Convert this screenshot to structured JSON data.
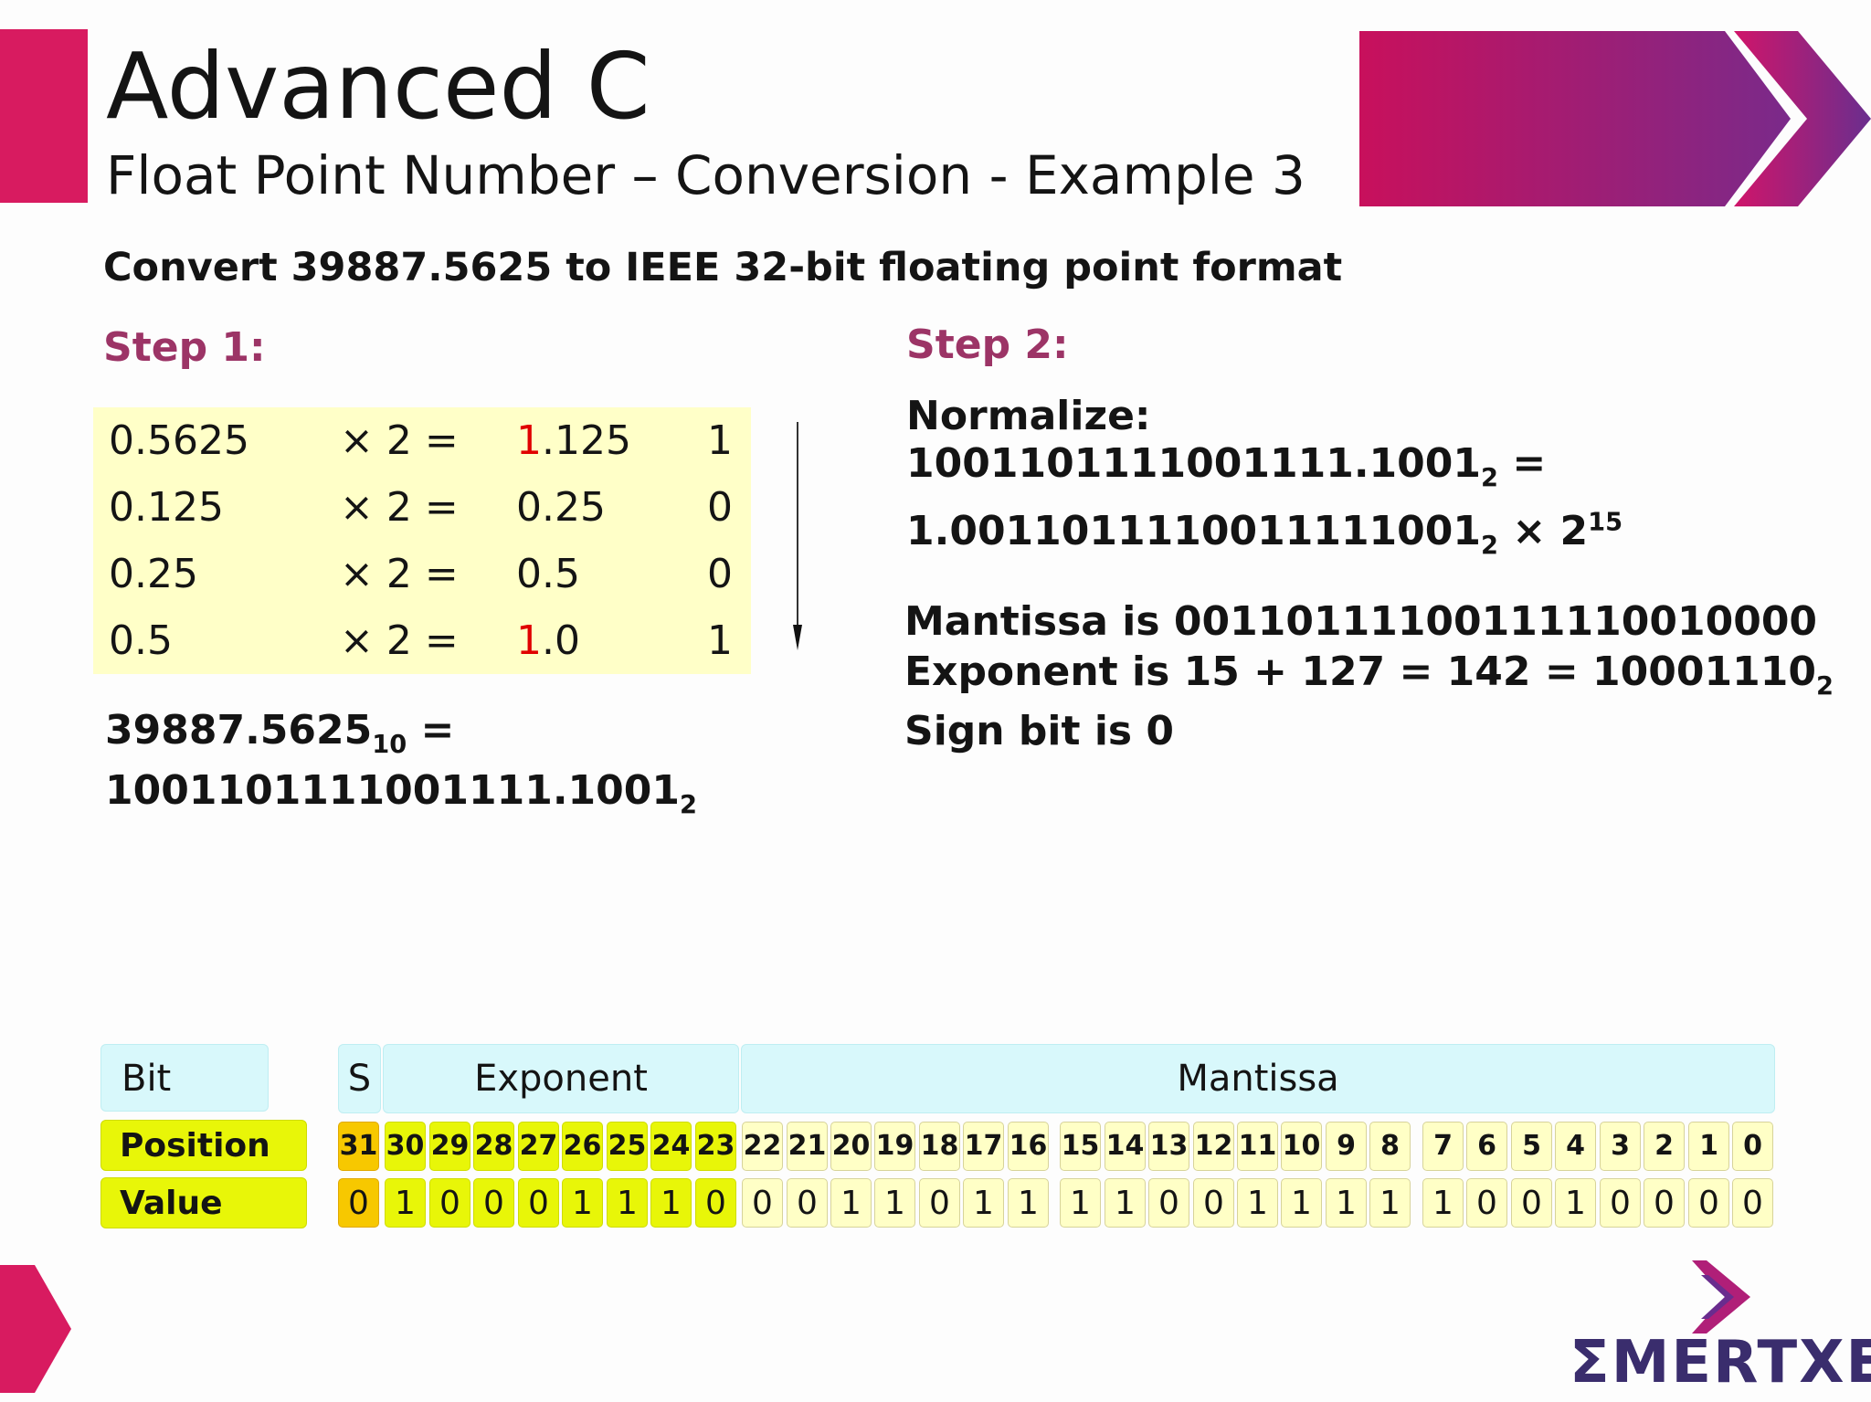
{
  "header": {
    "title": "Advanced C",
    "subtitle": "Float Point Number – Conversion - Example 3"
  },
  "question": "Convert 39887.5625 to IEEE 32-bit floating point format",
  "step1": {
    "label": "Step 1:",
    "rows": [
      {
        "value": "0.5625",
        "op": "× 2 =",
        "result_lead": "1",
        "result_rest": ".125",
        "bit": "1",
        "lead_highlight": true
      },
      {
        "value": "0.125",
        "op": "× 2 =",
        "result_lead": "0",
        "result_rest": ".25",
        "bit": "0",
        "lead_highlight": false
      },
      {
        "value": "0.25",
        "op": "× 2 =",
        "result_lead": "0",
        "result_rest": ".5",
        "bit": "0",
        "lead_highlight": false
      },
      {
        "value": "0.5",
        "op": "× 2 =",
        "result_lead": "1",
        "result_rest": ".0",
        "bit": "1",
        "lead_highlight": true
      }
    ],
    "result_line1": "39887.5625",
    "result_line1_sub": "10",
    "result_line1_tail": " =",
    "result_line2": "1001101111001111.1001",
    "result_line2_sub": "2"
  },
  "step2": {
    "label": "Step 2:",
    "normalize_label": "Normalize:",
    "norm_line1": "1001101111001111.1001",
    "norm_line1_sub": "2",
    "norm_line1_tail": " =",
    "norm_line2": "1.0011011110011111001",
    "norm_line2_sub": "2",
    "norm_line2_mid": " × 2",
    "norm_line2_sup": "15",
    "mantissa_line": "Mantissa is 00110111100111110010000",
    "exponent_line": "Exponent is 15 + 127 = 142 = 10001110",
    "exponent_sub": "2",
    "sign_line": "Sign bit is 0"
  },
  "bit_table": {
    "bit_label": "Bit",
    "s_label": "S",
    "exponent_label": "Exponent",
    "mantissa_label": "Mantissa",
    "position_label": "Position",
    "value_label": "Value",
    "positions": [
      "31",
      "30",
      "29",
      "28",
      "27",
      "26",
      "25",
      "24",
      "23",
      "22",
      "21",
      "20",
      "19",
      "18",
      "17",
      "16",
      "15",
      "14",
      "13",
      "12",
      "11",
      "10",
      "9",
      "8",
      "7",
      "6",
      "5",
      "4",
      "3",
      "2",
      "1",
      "0"
    ],
    "values": [
      "0",
      "1",
      "0",
      "0",
      "0",
      "1",
      "1",
      "1",
      "0",
      "0",
      "0",
      "1",
      "1",
      "0",
      "1",
      "1",
      "1",
      "1",
      "0",
      "0",
      "1",
      "1",
      "1",
      "1",
      "1",
      "0",
      "0",
      "1",
      "0",
      "0",
      "0",
      "0"
    ]
  },
  "logo": {
    "text": "ΣMERTXE"
  },
  "colors": {
    "accent": "#d81b60",
    "step_label": "#9c3466",
    "highlight_red": "#e00000",
    "sign_cell": "#f7c800",
    "exponent_cell": "#e8f608",
    "mantissa_cell": "#ffffc6",
    "header_cell": "#d8f8fb",
    "logo": "#3a2d6d"
  }
}
